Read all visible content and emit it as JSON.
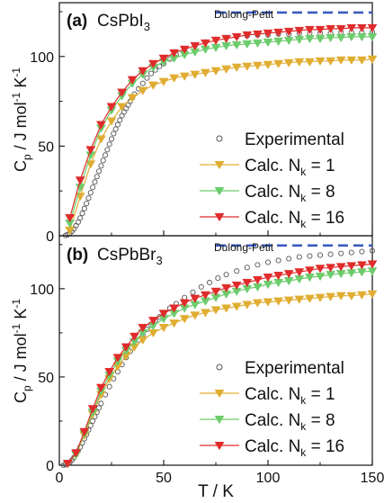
{
  "colors": {
    "experimental": "#555555",
    "nk1": "#e0ad32",
    "nk8": "#6ccc6c",
    "nk16": "#e02b2b",
    "dulong": "#3a5bbf"
  },
  "shared": {
    "ylabel_main": "C",
    "ylabel_sub": "p",
    "ylabel_units": " / J mol",
    "ylabel_sup": "-1",
    "ylabel_k": " K",
    "ylabel_sup2": "-1",
    "xlabel": "T / K",
    "xticks": [
      "0",
      "50",
      "100",
      "150"
    ],
    "yticks": [
      "0",
      "50",
      "100"
    ]
  },
  "chart_data": [
    {
      "type": "line",
      "panel_label": "(a)",
      "title_main": "CsPbI",
      "title_sub": "3",
      "xlim": [
        0,
        150
      ],
      "ylim": [
        0,
        130
      ],
      "dulong_petit": {
        "label": "Dulong-Petit",
        "value": 124.5,
        "x_start": 75,
        "x_end": 150
      },
      "legend": [
        "Experimental",
        "Calc. N",
        "Calc. N",
        "Calc. N"
      ],
      "legend_sub": [
        "",
        "k",
        "k",
        "k"
      ],
      "legend_tail": [
        "",
        " = 1",
        " = 8",
        " = 16"
      ],
      "experimental": {
        "x": [
          3,
          4,
          5,
          6,
          7,
          8,
          9,
          10,
          11,
          12,
          13,
          14,
          15,
          16,
          17,
          18,
          19,
          20,
          21,
          22,
          23,
          24,
          25,
          26,
          27,
          28,
          29,
          30,
          31,
          32,
          33,
          34,
          35,
          36,
          38,
          40,
          42,
          44,
          46,
          48,
          50,
          53,
          56,
          60,
          65,
          70,
          75,
          80,
          85,
          90,
          95,
          100,
          105,
          110,
          115,
          120,
          125,
          130,
          135,
          140,
          145,
          150
        ],
        "y": [
          0.2,
          0.6,
          1.3,
          2.4,
          3.8,
          5.6,
          7.6,
          9.9,
          12.5,
          15.2,
          18.0,
          21,
          24,
          27,
          30,
          33,
          36,
          39,
          42,
          45,
          48,
          51,
          54,
          57,
          59.5,
          62,
          64.5,
          67,
          69,
          71,
          73,
          75,
          77,
          79,
          82,
          85,
          88,
          90.5,
          92.5,
          94.5,
          96,
          98.5,
          101,
          103.5,
          106,
          108,
          109.5,
          110.5,
          111,
          111.5,
          112,
          112,
          112.5,
          112.5,
          113,
          113,
          113,
          113,
          113.5,
          113.5,
          113.5,
          113.5
        ]
      },
      "series": [
        {
          "key": "nk1",
          "x": [
            5,
            10,
            15,
            20,
            25,
            30,
            35,
            40,
            45,
            50,
            55,
            60,
            65,
            70,
            75,
            80,
            85,
            90,
            95,
            100,
            105,
            110,
            115,
            120,
            125,
            130,
            135,
            140,
            145,
            150
          ],
          "y": [
            3,
            22,
            40,
            54,
            64,
            72,
            77,
            81,
            84,
            86,
            88,
            89,
            90,
            91,
            92,
            93,
            94,
            94.5,
            95,
            95.5,
            96,
            96.5,
            97,
            97,
            97.5,
            97.5,
            98,
            98,
            98,
            98.5
          ]
        },
        {
          "key": "nk8",
          "x": [
            5,
            10,
            15,
            20,
            25,
            30,
            35,
            40,
            45,
            50,
            55,
            60,
            65,
            70,
            75,
            80,
            85,
            90,
            95,
            100,
            105,
            110,
            115,
            120,
            125,
            130,
            135,
            140,
            145,
            150
          ],
          "y": [
            7,
            27,
            45,
            60,
            70,
            78,
            85,
            90,
            94,
            97,
            99,
            101,
            102.5,
            104,
            105,
            106,
            106.5,
            107,
            107.5,
            108,
            108.5,
            109,
            109.5,
            110,
            110,
            110.5,
            110.5,
            111,
            111,
            111
          ]
        },
        {
          "key": "nk16",
          "x": [
            5,
            10,
            15,
            20,
            25,
            30,
            35,
            40,
            45,
            50,
            55,
            60,
            65,
            70,
            75,
            80,
            85,
            90,
            95,
            100,
            105,
            110,
            115,
            120,
            125,
            130,
            135,
            140,
            145,
            150
          ],
          "y": [
            10,
            31,
            48,
            62,
            72,
            80,
            87,
            92,
            96,
            99,
            102,
            104,
            106,
            107.5,
            109,
            110,
            111,
            112,
            112.5,
            113,
            113.5,
            114,
            114.5,
            115,
            115,
            115.5,
            115.5,
            116,
            116,
            116
          ]
        }
      ]
    },
    {
      "type": "line",
      "panel_label": "(b)",
      "title_main": "CsPbBr",
      "title_sub": "3",
      "xlim": [
        0,
        150
      ],
      "ylim": [
        0,
        130
      ],
      "dulong_petit": {
        "label": "Dulong-Petit",
        "value": 124.5,
        "x_start": 75,
        "x_end": 150
      },
      "legend": [
        "Experimental",
        "Calc. N",
        "Calc. N",
        "Calc. N"
      ],
      "legend_sub": [
        "",
        "k",
        "k",
        "k"
      ],
      "legend_tail": [
        "",
        " = 1",
        " = 8",
        " = 16"
      ],
      "experimental": {
        "x": [
          2,
          3,
          4,
          5,
          6,
          7,
          8,
          9,
          10,
          11,
          12,
          13,
          14,
          15,
          16,
          17,
          18,
          19,
          20,
          22,
          24,
          26,
          28,
          30,
          32,
          34,
          36,
          38,
          40,
          42,
          44,
          46,
          48,
          50,
          53,
          56,
          60,
          64,
          68,
          72,
          76,
          80,
          85,
          90,
          95,
          100,
          105,
          110,
          115,
          120,
          125,
          130,
          135,
          140,
          145,
          150
        ],
        "y": [
          0.1,
          0.3,
          0.8,
          1.6,
          2.8,
          4.3,
          6.1,
          8.1,
          10.3,
          12.6,
          15.0,
          17.5,
          20,
          22.5,
          25,
          27.5,
          30,
          32.5,
          35,
          40,
          44.5,
          49,
          53,
          57,
          61,
          64.5,
          68,
          71,
          74,
          77,
          79.5,
          82,
          84,
          86,
          89,
          91.5,
          95,
          98,
          101,
          103.5,
          106,
          108,
          110,
          112,
          113.5,
          115,
          116,
          117,
          118,
          118.5,
          119,
          119.5,
          120,
          120.5,
          121,
          121.5
        ]
      },
      "series": [
        {
          "key": "nk1",
          "x": [
            4,
            8,
            12,
            16,
            20,
            24,
            28,
            32,
            36,
            40,
            45,
            50,
            55,
            60,
            65,
            70,
            75,
            80,
            85,
            90,
            95,
            100,
            105,
            110,
            115,
            120,
            125,
            130,
            135,
            140,
            145,
            150
          ],
          "y": [
            1,
            6,
            17,
            29,
            40,
            49,
            56,
            62,
            67,
            71,
            75,
            78,
            80.5,
            83,
            85,
            86.5,
            88,
            89,
            90,
            91,
            92,
            92.5,
            93,
            93.5,
            94,
            94.5,
            95,
            95.5,
            96,
            96,
            96.5,
            97
          ]
        },
        {
          "key": "nk8",
          "x": [
            4,
            8,
            12,
            16,
            20,
            24,
            28,
            32,
            36,
            40,
            45,
            50,
            55,
            60,
            65,
            70,
            75,
            80,
            85,
            90,
            95,
            100,
            105,
            110,
            115,
            120,
            125,
            130,
            135,
            140,
            145,
            150
          ],
          "y": [
            1,
            6,
            18,
            30,
            42,
            51,
            59,
            65,
            70,
            75,
            79,
            83,
            86,
            89,
            91,
            93,
            95,
            97,
            98.5,
            100,
            101,
            102.5,
            103.5,
            104.5,
            105.5,
            106.5,
            107,
            108,
            108.5,
            109,
            109.5,
            110
          ]
        },
        {
          "key": "nk16",
          "x": [
            4,
            8,
            12,
            16,
            20,
            24,
            28,
            32,
            36,
            40,
            45,
            50,
            55,
            60,
            65,
            70,
            75,
            80,
            85,
            90,
            95,
            100,
            105,
            110,
            115,
            120,
            125,
            130,
            135,
            140,
            145,
            150
          ],
          "y": [
            1,
            7,
            19,
            32,
            44,
            53,
            61,
            67,
            73,
            78,
            82,
            86,
            89,
            92,
            94.5,
            96.5,
            98.5,
            100.5,
            102,
            103.5,
            105,
            106.5,
            107.5,
            108.5,
            109.5,
            110.5,
            111.5,
            112,
            112.5,
            113,
            113.5,
            114
          ]
        }
      ]
    }
  ]
}
